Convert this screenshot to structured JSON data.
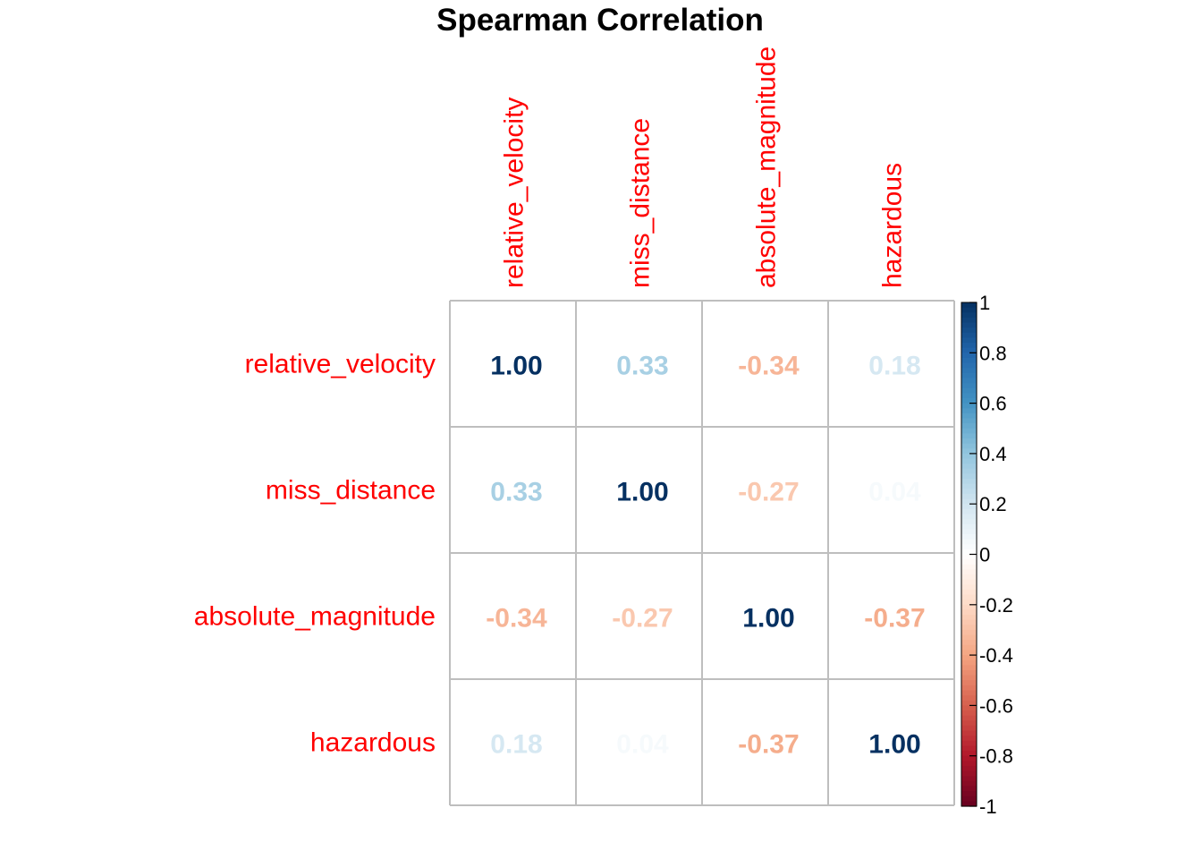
{
  "chart_data": {
    "type": "heatmap",
    "title": "Spearman Correlation",
    "variables": [
      "relative_velocity",
      "miss_distance",
      "absolute_magnitude",
      "hazardous"
    ],
    "matrix": [
      [
        1.0,
        0.33,
        -0.34,
        0.18
      ],
      [
        0.33,
        1.0,
        -0.27,
        0.04
      ],
      [
        -0.34,
        -0.27,
        1.0,
        -0.37
      ],
      [
        0.18,
        0.04,
        -0.37,
        1.0
      ]
    ],
    "cell_labels": [
      [
        "1.00",
        "0.33",
        "-0.34",
        "0.18"
      ],
      [
        "0.33",
        "1.00",
        "-0.27",
        "0.04"
      ],
      [
        "-0.34",
        "-0.27",
        "1.00",
        "-0.37"
      ],
      [
        "0.18",
        "0.04",
        "-0.37",
        "1.00"
      ]
    ],
    "colorbar": {
      "range": [
        -1,
        1
      ],
      "ticks": [
        "1",
        "0.8",
        "0.6",
        "0.4",
        "0.2",
        "0",
        "-0.2",
        "-0.4",
        "-0.6",
        "-0.8",
        "-1"
      ]
    },
    "colors": {
      "label": "#ff0000",
      "grid": "#bebebe",
      "neg_extreme": "#67001f",
      "pos_extreme": "#053061"
    }
  }
}
